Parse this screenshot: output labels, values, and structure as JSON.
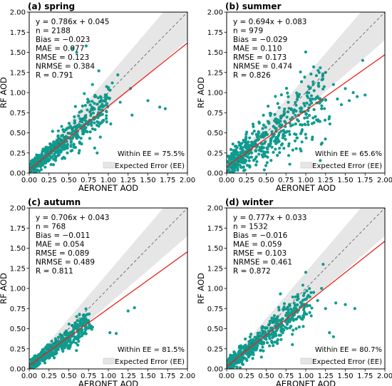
{
  "chart_data": [
    {
      "type": "scatter",
      "title": "(a) spring",
      "xlabel": "AERONET AOD",
      "ylabel": "RF AOD",
      "xlim": [
        0,
        2
      ],
      "ylim": [
        0,
        2
      ],
      "xticks": [
        "0.00",
        "0.25",
        "0.50",
        "0.75",
        "1.00",
        "1.25",
        "1.50",
        "1.75",
        "2.00"
      ],
      "yticks": [
        "0.00",
        "0.25",
        "0.50",
        "0.75",
        "1.00",
        "1.25",
        "1.50",
        "1.75",
        "2.00"
      ],
      "stats": [
        "y = 0.786x + 0.045",
        "n = 2188",
        "Bias = −0.023",
        "MAE = 0.077",
        "RMSE = 0.123",
        "NRMSE = 0.384",
        "R = 0.791"
      ],
      "fit": {
        "slope": 0.786,
        "intercept": 0.045
      },
      "within_ee": "Within EE = 75.5%",
      "legend_label": "Expected Error (EE)",
      "point_color": "#0f9b8e",
      "fit_color": "#e8231c",
      "ee_fill": "#e6e6e6",
      "outliers": [
        [
          1.02,
          1.03
        ],
        [
          0.55,
          1.55
        ],
        [
          0.6,
          1.5
        ],
        [
          0.72,
          1.58
        ],
        [
          0.88,
          1.27
        ],
        [
          1.12,
          1.22
        ],
        [
          1.28,
          1.05
        ],
        [
          1.5,
          0.9
        ],
        [
          1.65,
          0.82
        ],
        [
          1.72,
          0.8
        ],
        [
          1.3,
          0.72
        ],
        [
          1.05,
          1.12
        ],
        [
          0.9,
          0.95
        ],
        [
          1.15,
          0.88
        ],
        [
          0.8,
          1.1
        ]
      ],
      "spread": 0.11,
      "xmax": 0.95
    },
    {
      "type": "scatter",
      "title": "(b) summer",
      "xlabel": "AERONET AOD",
      "ylabel": "RF AOD",
      "xlim": [
        0,
        2
      ],
      "ylim": [
        0,
        2
      ],
      "xticks": [
        "0.00",
        "0.25",
        "0.50",
        "0.75",
        "1.00",
        "1.25",
        "1.50",
        "1.75",
        "2.00"
      ],
      "yticks": [
        "0.00",
        "0.25",
        "0.50",
        "0.75",
        "1.00",
        "1.25",
        "1.50",
        "1.75",
        "2.00"
      ],
      "stats": [
        "y = 0.694x + 0.083",
        "n = 979",
        "Bias = −0.029",
        "MAE = 0.110",
        "RMSE = 0.173",
        "NRMSE = 0.474",
        "R = 0.826"
      ],
      "fit": {
        "slope": 0.694,
        "intercept": 0.083
      },
      "within_ee": "Within EE = 65.6%",
      "legend_label": "Expected Error (EE)",
      "point_color": "#0f9b8e",
      "fit_color": "#e8231c",
      "ee_fill": "#e6e6e6",
      "outliers": [
        [
          1.72,
          1.4
        ],
        [
          1.1,
          1.32
        ],
        [
          1.25,
          1.25
        ],
        [
          1.35,
          1.1
        ],
        [
          1.5,
          1.05
        ],
        [
          1.6,
          1.0
        ],
        [
          1.4,
          0.92
        ],
        [
          1.2,
          0.8
        ],
        [
          1.3,
          0.7
        ],
        [
          1.45,
          0.85
        ],
        [
          1.15,
          0.95
        ],
        [
          1.65,
          0.95
        ],
        [
          1.05,
          1.05
        ],
        [
          1.55,
          0.9
        ],
        [
          1.75,
          0.97
        ]
      ],
      "spread": 0.16,
      "xmax": 1.2
    },
    {
      "type": "scatter",
      "title": "(c) autumn",
      "xlabel": "AERONET AOD",
      "ylabel": "RF AOD",
      "xlim": [
        0,
        2
      ],
      "ylim": [
        0,
        2
      ],
      "xticks": [
        "0.00",
        "0.25",
        "0.50",
        "0.75",
        "1.00",
        "1.25",
        "1.50",
        "1.75",
        "2.00"
      ],
      "yticks": [
        "0.00",
        "0.25",
        "0.50",
        "0.75",
        "1.00",
        "1.25",
        "1.50",
        "1.75",
        "2.00"
      ],
      "stats": [
        "y = 0.706x + 0.043",
        "n = 768",
        "Bias = −0.011",
        "MAE = 0.054",
        "RMSE = 0.089",
        "NRMSE = 0.489",
        "R = 0.811"
      ],
      "fit": {
        "slope": 0.706,
        "intercept": 0.043
      },
      "within_ee": "Within EE = 81.5%",
      "legend_label": "Expected Error (EE)",
      "point_color": "#0f9b8e",
      "fit_color": "#e8231c",
      "ee_fill": "#e6e6e6",
      "outliers": [
        [
          1.33,
          0.76
        ],
        [
          1.25,
          0.72
        ],
        [
          1.02,
          0.45
        ],
        [
          1.1,
          0.44
        ],
        [
          0.7,
          0.6
        ],
        [
          0.65,
          0.55
        ],
        [
          0.8,
          0.52
        ],
        [
          0.75,
          0.6
        ],
        [
          0.6,
          0.65
        ]
      ],
      "spread": 0.07,
      "xmax": 0.7
    },
    {
      "type": "scatter",
      "title": "(d) winter",
      "xlabel": "AERONET AOD",
      "ylabel": "RF AOD",
      "xlim": [
        0,
        2
      ],
      "ylim": [
        0,
        2
      ],
      "xticks": [
        "0.00",
        "0.25",
        "0.50",
        "0.75",
        "1.00",
        "1.25",
        "1.50",
        "1.75",
        "2.00"
      ],
      "yticks": [
        "0.00",
        "0.25",
        "0.50",
        "0.75",
        "1.00",
        "1.25",
        "1.50",
        "1.75",
        "2.00"
      ],
      "stats": [
        "y = 0.777x + 0.033",
        "n = 1532",
        "Bias = −0.016",
        "MAE = 0.059",
        "RMSE = 0.103",
        "NRMSE = 0.461",
        "R = 0.872"
      ],
      "fit": {
        "slope": 0.777,
        "intercept": 0.033
      },
      "within_ee": "Within EE = 80.7%",
      "legend_label": "Expected Error (EE)",
      "point_color": "#0f9b8e",
      "fit_color": "#e8231c",
      "ee_fill": "#e6e6e6",
      "outliers": [
        [
          1.22,
          1.3
        ],
        [
          1.0,
          1.2
        ],
        [
          1.38,
          0.82
        ],
        [
          1.5,
          0.8
        ],
        [
          1.62,
          0.75
        ],
        [
          1.25,
          0.75
        ],
        [
          1.3,
          0.45
        ],
        [
          1.35,
          0.4
        ],
        [
          1.1,
          0.95
        ],
        [
          1.15,
          0.85
        ],
        [
          0.9,
          0.9
        ],
        [
          1.2,
          1.0
        ],
        [
          1.05,
          0.7
        ],
        [
          0.95,
          0.8
        ]
      ],
      "spread": 0.09,
      "xmax": 1.0
    }
  ]
}
